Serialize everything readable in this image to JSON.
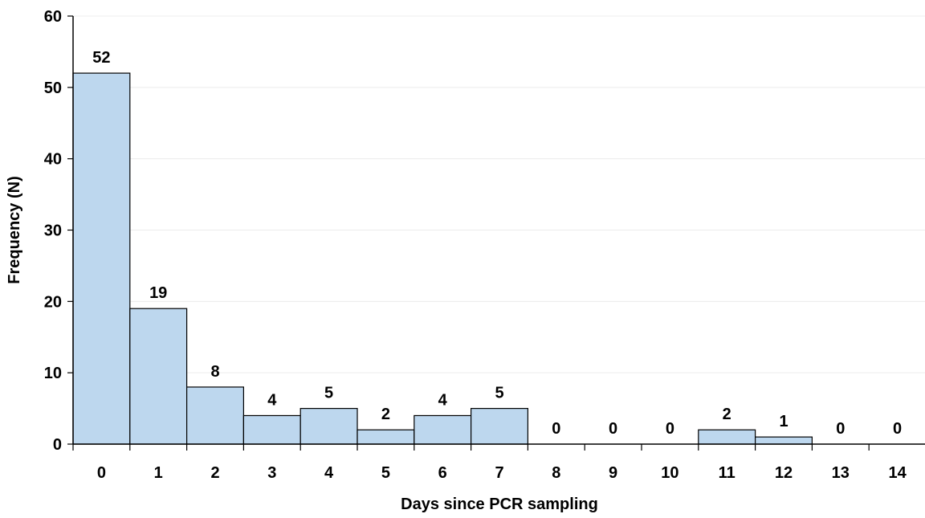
{
  "chart_data": {
    "type": "bar",
    "title": "",
    "xlabel": "Days since PCR sampling",
    "ylabel": "Frequency (N)",
    "categories": [
      "0",
      "1",
      "2",
      "3",
      "4",
      "5",
      "6",
      "7",
      "8",
      "9",
      "10",
      "11",
      "12",
      "13",
      "14"
    ],
    "values": [
      52,
      19,
      8,
      4,
      5,
      2,
      4,
      5,
      0,
      0,
      0,
      2,
      1,
      0,
      0
    ],
    "ylim": [
      0,
      60
    ],
    "yticks": [
      0,
      10,
      20,
      30,
      40,
      50,
      60
    ],
    "grid": true,
    "legend": "none",
    "bar_color": "#bdd7ee",
    "bar_edge_color": "#000000"
  }
}
